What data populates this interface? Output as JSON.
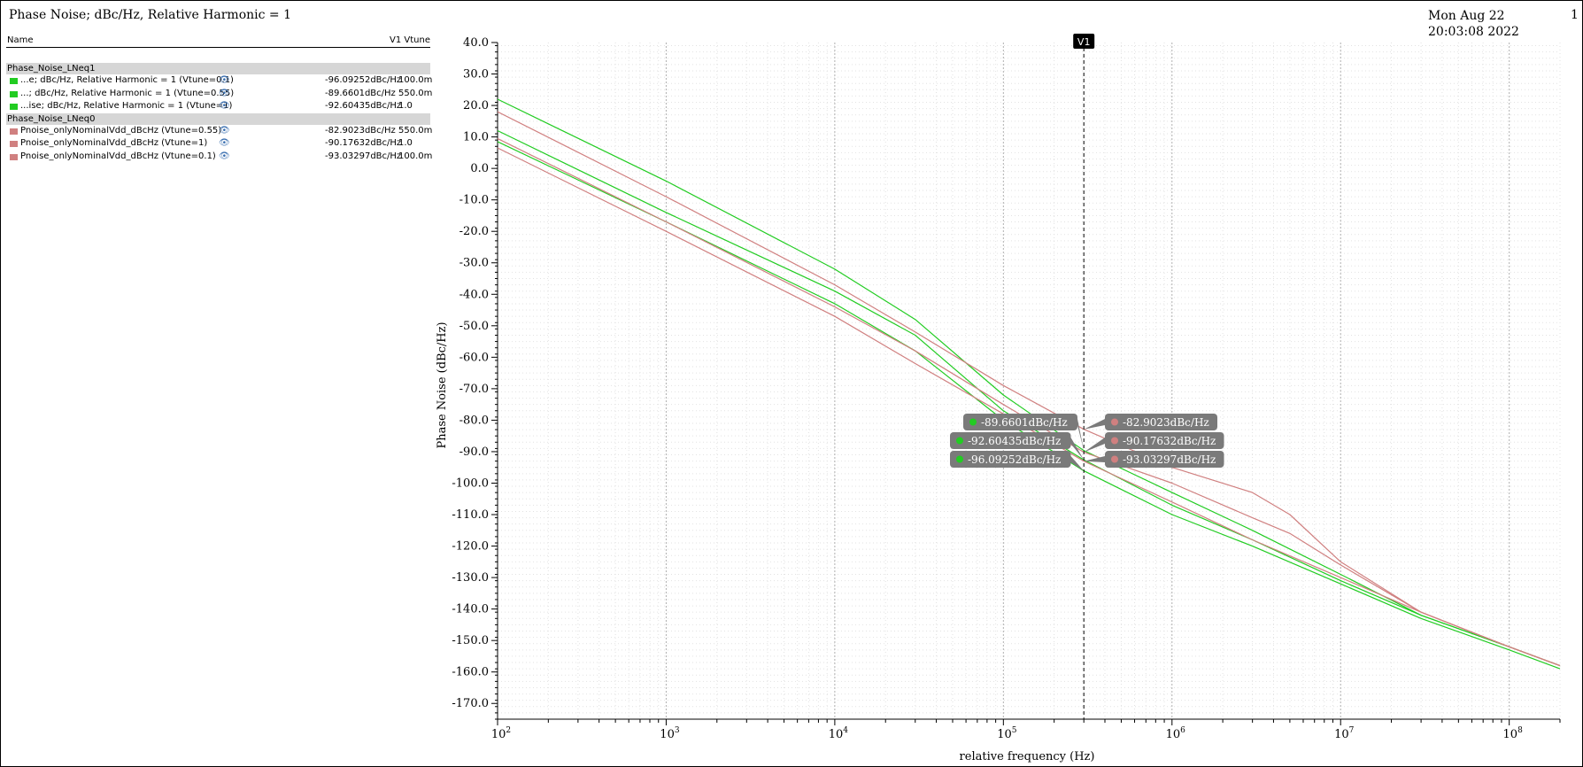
{
  "window": {
    "title": "Phase Noise; dBc/Hz, Relative Harmonic = 1",
    "timestamp": "Mon Aug 22 20:03:08 2022",
    "page_number": "1"
  },
  "legend": {
    "header_name": "Name",
    "header_v1": "V1 Vtune",
    "groups": [
      {
        "title": "Phase_Noise_LNeq1",
        "color": "#22cc22",
        "rows": [
          {
            "name": "...e; dBc/Hz, Relative Harmonic = 1 (Vtune=0.1)",
            "value": "-96.09252dBc/Hz",
            "vtune": "100.0m"
          },
          {
            "name": "...; dBc/Hz, Relative Harmonic = 1 (Vtune=0.55)",
            "value": "-89.6601dBc/Hz",
            "vtune": "550.0m"
          },
          {
            "name": "...ise; dBc/Hz, Relative Harmonic = 1 (Vtune=1)",
            "value": "-92.60435dBc/Hz",
            "vtune": "1.0"
          }
        ]
      },
      {
        "title": "Phase_Noise_LNeq0",
        "color": "#d08080",
        "rows": [
          {
            "name": "Pnoise_onlyNominalVdd_dBcHz (Vtune=0.55)",
            "value": "-82.9023dBc/Hz",
            "vtune": "550.0m"
          },
          {
            "name": "Pnoise_onlyNominalVdd_dBcHz (Vtune=1)",
            "value": "-90.17632dBc/Hz",
            "vtune": "1.0"
          },
          {
            "name": "Pnoise_onlyNominalVdd_dBcHz (Vtune=0.1)",
            "value": "-93.03297dBc/Hz",
            "vtune": "100.0m"
          }
        ]
      }
    ]
  },
  "colors": {
    "green": "#22cc22",
    "pink": "#d08080",
    "marker_bg": "#7a7a7a"
  },
  "chart_data": {
    "type": "line",
    "xscale": "log",
    "xlim": [
      100,
      200000000
    ],
    "ylim": [
      -175,
      40
    ],
    "xlabel": "relative frequency (Hz)",
    "ylabel": "Phase Noise (dBc/Hz)",
    "grid": true,
    "y_ticks": [
      "40.0",
      "30.0",
      "20.0",
      "10.0",
      "0.0",
      "-10.0",
      "-20.0",
      "-30.0",
      "-40.0",
      "-50.0",
      "-60.0",
      "-70.0",
      "-80.0",
      "-90.0",
      "-100.0",
      "-110.0",
      "-120.0",
      "-130.0",
      "-140.0",
      "-150.0",
      "-160.0",
      "-170.0"
    ],
    "x_ticks": [
      {
        "base": "10",
        "exp": "2"
      },
      {
        "base": "10",
        "exp": "3"
      },
      {
        "base": "10",
        "exp": "4"
      },
      {
        "base": "10",
        "exp": "5"
      },
      {
        "base": "10",
        "exp": "6"
      },
      {
        "base": "10",
        "exp": "7"
      },
      {
        "base": "10",
        "exp": "8"
      }
    ],
    "cursor": {
      "label": "V1",
      "x": 300000
    },
    "series": [
      {
        "name": "...e; dBc/Hz, Relative Harmonic = 1 (Vtune=0.1)",
        "color": "#22cc22",
        "x": [
          100,
          1000,
          10000,
          30000,
          100000,
          300000,
          1000000,
          3000000,
          10000000,
          30000000,
          100000000,
          200000000
        ],
        "y": [
          8.5,
          -17,
          -43,
          -58,
          -80,
          -96.1,
          -110,
          -120,
          -132,
          -143,
          -153,
          -159
        ]
      },
      {
        "name": "...; dBc/Hz, Relative Harmonic = 1 (Vtune=0.55)",
        "color": "#22cc22",
        "x": [
          100,
          1000,
          10000,
          30000,
          100000,
          300000,
          1000000,
          3000000,
          10000000,
          30000000,
          100000000,
          200000000
        ],
        "y": [
          22,
          -4,
          -32,
          -48,
          -72,
          -89.66,
          -103,
          -115,
          -129,
          -142,
          -152,
          -158
        ]
      },
      {
        "name": "...ise; dBc/Hz, Relative Harmonic = 1 (Vtune=1)",
        "color": "#22cc22",
        "x": [
          100,
          1000,
          10000,
          30000,
          100000,
          300000,
          1000000,
          3000000,
          10000000,
          30000000,
          100000000,
          200000000
        ],
        "y": [
          12,
          -14,
          -39,
          -53,
          -77,
          -92.6,
          -107,
          -118,
          -131,
          -142,
          -152,
          -158
        ]
      },
      {
        "name": "Pnoise_onlyNominalVdd_dBcHz (Vtune=0.55)",
        "color": "#d08080",
        "x": [
          100,
          1000,
          10000,
          30000,
          100000,
          300000,
          1000000,
          3000000,
          5000000,
          10000000,
          30000000,
          100000000,
          200000000
        ],
        "y": [
          18,
          -9,
          -37,
          -52,
          -69,
          -82.9,
          -95,
          -103,
          -110,
          -125,
          -141,
          -152,
          -158
        ]
      },
      {
        "name": "Pnoise_onlyNominalVdd_dBcHz (Vtune=1)",
        "color": "#d08080",
        "x": [
          100,
          1000,
          10000,
          30000,
          100000,
          300000,
          1000000,
          3000000,
          5000000,
          10000000,
          30000000,
          100000000,
          200000000
        ],
        "y": [
          9.5,
          -17,
          -44,
          -58,
          -75,
          -90.18,
          -100,
          -111,
          -116,
          -126,
          -141,
          -152,
          -158
        ]
      },
      {
        "name": "Pnoise_onlyNominalVdd_dBcHz (Vtune=0.1)",
        "color": "#d08080",
        "x": [
          100,
          1000,
          10000,
          30000,
          100000,
          300000,
          1000000,
          3000000,
          10000000,
          30000000,
          100000000,
          200000000
        ],
        "y": [
          6.5,
          -20,
          -47,
          -62,
          -78,
          -93.03,
          -106,
          -118,
          -130,
          -141,
          -152,
          -158
        ]
      }
    ],
    "markers": [
      {
        "label": "-89.6601dBc/Hz",
        "color": "#22cc22",
        "y": -89.66
      },
      {
        "label": "-92.60435dBc/Hz",
        "color": "#22cc22",
        "y": -92.6
      },
      {
        "label": "-96.09252dBc/Hz",
        "color": "#22cc22",
        "y": -96.09
      },
      {
        "label": "-82.9023dBc/Hz",
        "color": "#d08080",
        "y": -82.9
      },
      {
        "label": "-90.17632dBc/Hz",
        "color": "#d08080",
        "y": -90.18
      },
      {
        "label": "-93.03297dBc/Hz",
        "color": "#d08080",
        "y": -93.03
      }
    ]
  }
}
